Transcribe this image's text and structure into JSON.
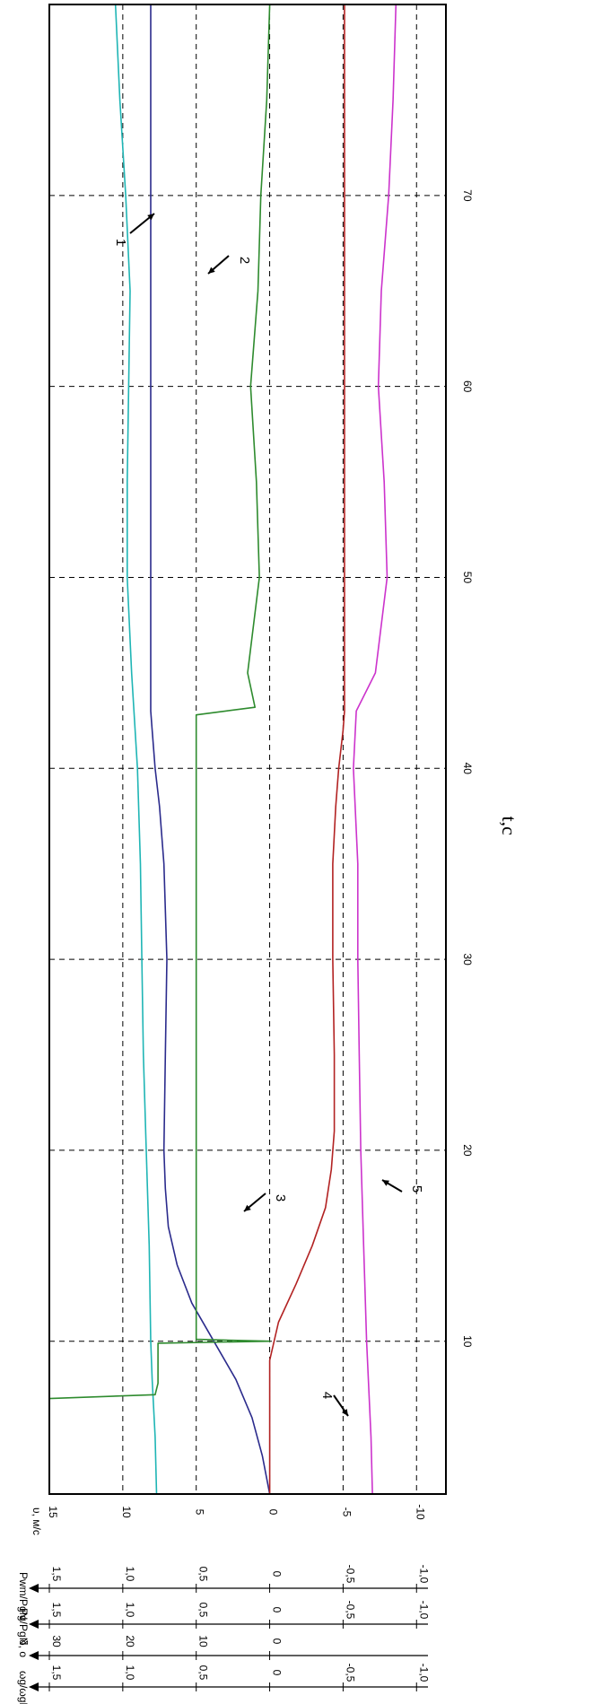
{
  "chart_data": {
    "type": "line",
    "xlabel": "t,c",
    "ylabel": "υ, м/с",
    "x_ticks": [
      10,
      20,
      30,
      40,
      50,
      60,
      70
    ],
    "y_ticks": [
      15,
      10,
      5,
      0,
      -5,
      -10
    ],
    "xlim": [
      2,
      80
    ],
    "ylim": [
      -12,
      15
    ],
    "grid": true,
    "extra_axes": [
      {
        "label": "Pwm/PgN",
        "ticks": [
          "1,5",
          "1,0",
          "0,5",
          "0",
          "-0,5",
          "-1,0"
        ],
        "values": [
          1.5,
          1.0,
          0.5,
          0,
          -0.5,
          -1.0
        ]
      },
      {
        "label": "Pg/PgN",
        "ticks": [
          "1,5",
          "1,0",
          "0,5",
          "0",
          "-0,5",
          "-1,0"
        ],
        "values": [
          1.5,
          1.0,
          0.5,
          0,
          -0.5,
          -1.0
        ]
      },
      {
        "label": "δ, о",
        "ticks": [
          "30",
          "20",
          "10",
          "0"
        ],
        "values": [
          30,
          20,
          10,
          0
        ]
      },
      {
        "label": "ωg/ωgN",
        "ticks": [
          "1,5",
          "1,0",
          "0,5",
          "0",
          "-0,5",
          "-1,0"
        ],
        "values": [
          1.5,
          1.0,
          0.5,
          0,
          -0.5,
          -1.0
        ]
      }
    ],
    "series": [
      {
        "name": "1",
        "color": "#1fb5b5",
        "x": [
          2,
          5,
          8,
          10,
          15,
          20,
          25,
          30,
          35,
          40,
          45,
          50,
          55,
          60,
          65,
          70,
          75,
          80
        ],
        "y": [
          7.7,
          7.8,
          8.0,
          8.1,
          8.2,
          8.4,
          8.6,
          8.7,
          8.8,
          9.0,
          9.4,
          9.7,
          9.7,
          9.6,
          9.5,
          9.8,
          10.2,
          10.5
        ]
      },
      {
        "name": "2",
        "color": "#2b2b8c",
        "x": [
          2,
          4,
          6,
          8,
          10,
          12,
          14,
          16,
          18,
          20,
          25,
          30,
          35,
          38,
          40,
          42,
          43,
          45,
          50,
          60,
          70,
          80
        ],
        "y": [
          0.0,
          0.5,
          1.2,
          2.3,
          3.8,
          5.3,
          6.3,
          6.9,
          7.1,
          7.2,
          7.1,
          7.0,
          7.2,
          7.5,
          7.8,
          8.0,
          8.1,
          8.1,
          8.1,
          8.1,
          8.1,
          8.1
        ]
      },
      {
        "name": "3",
        "color": "#2e8b2e",
        "x": [
          2,
          7,
          7.2,
          7.8,
          9.9,
          10,
          10.1,
          42.8,
          43,
          43.2,
          45,
          50,
          55,
          60,
          65,
          70,
          75,
          80
        ],
        "y": [
          15.0,
          15.0,
          7.8,
          7.6,
          7.6,
          0.0,
          5.0,
          5.0,
          3.0,
          1.0,
          1.5,
          0.7,
          0.9,
          1.3,
          0.8,
          0.6,
          0.2,
          0.0
        ]
      },
      {
        "name": "4",
        "color": "#b22222",
        "x": [
          2,
          5,
          9,
          11,
          13,
          15,
          17,
          19,
          21,
          25,
          30,
          35,
          38,
          40,
          42,
          43,
          45,
          50,
          60,
          70,
          80
        ],
        "y": [
          0.0,
          0.0,
          0.0,
          -0.6,
          -1.8,
          -2.9,
          -3.8,
          -4.2,
          -4.4,
          -4.4,
          -4.3,
          -4.3,
          -4.5,
          -4.7,
          -5.0,
          -5.1,
          -5.1,
          -5.1,
          -5.1,
          -5.1,
          -5.1
        ]
      },
      {
        "name": "5",
        "color": "#cc33cc",
        "x": [
          2,
          5,
          10,
          15,
          20,
          25,
          30,
          35,
          40,
          43,
          45,
          50,
          55,
          60,
          65,
          70,
          75,
          80
        ],
        "y": [
          -7.0,
          -6.9,
          -6.6,
          -6.4,
          -6.2,
          -6.1,
          -6.0,
          -6.0,
          -5.7,
          -5.9,
          -7.2,
          -8.0,
          -7.8,
          -7.4,
          -7.6,
          -8.1,
          -8.4,
          -8.6
        ]
      }
    ],
    "annotations": [
      "1",
      "2",
      "3",
      "4",
      "5"
    ]
  },
  "colors": {
    "grid": "#000000",
    "frame": "#000000",
    "background": "#ffffff"
  }
}
